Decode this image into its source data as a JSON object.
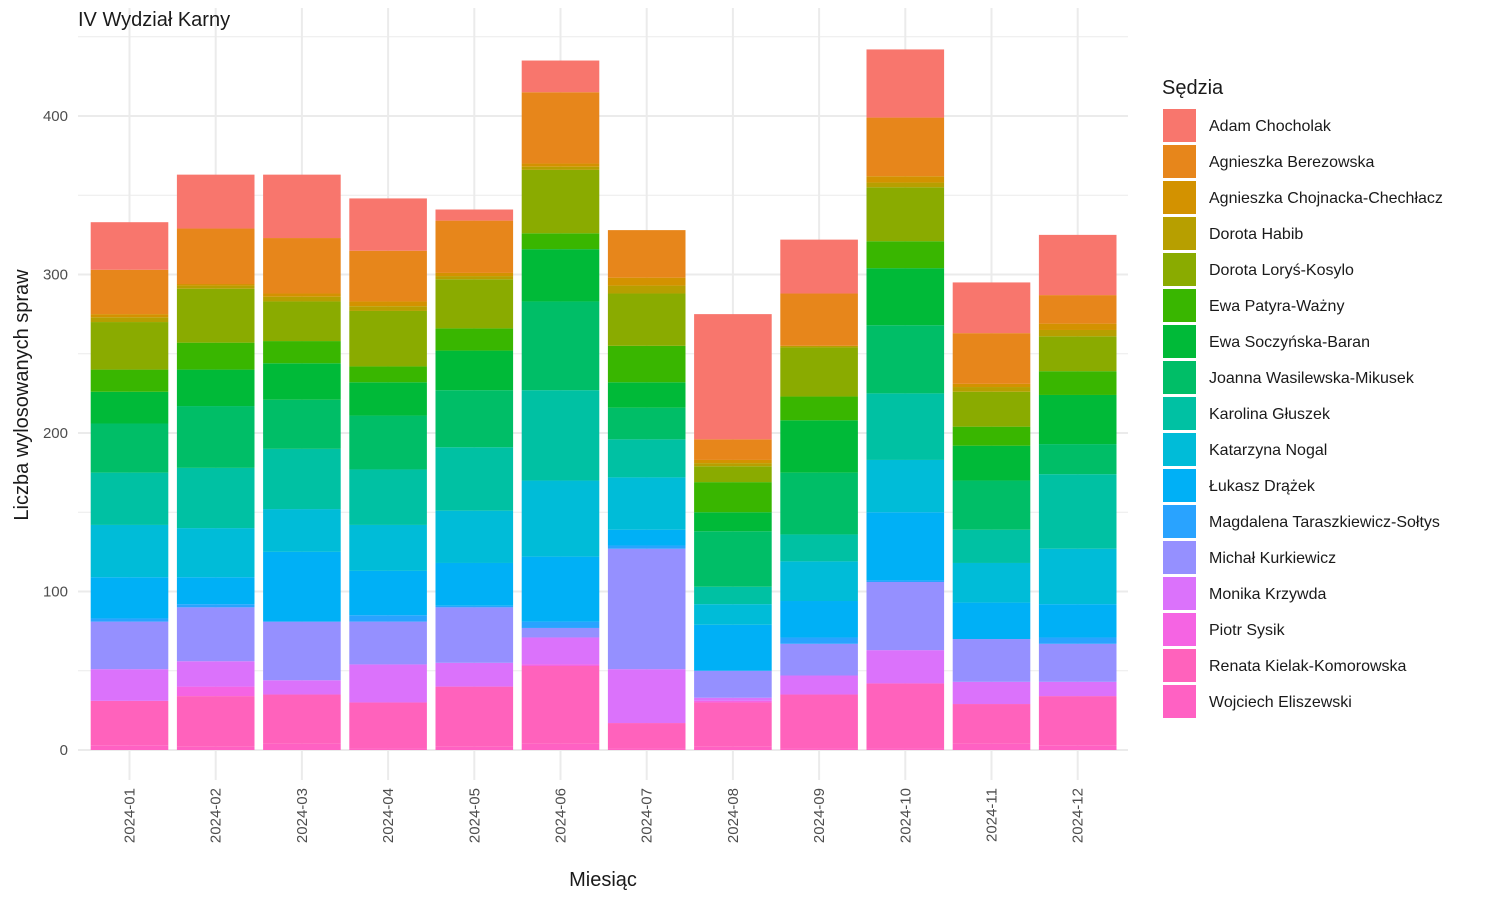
{
  "chart_data": {
    "type": "bar",
    "stacked": true,
    "title": "IV Wydział Karny",
    "xlabel": "Miesiąc",
    "ylabel": "Liczba wylosowanych spraw",
    "ylim": [
      -12,
      450
    ],
    "yticks": [
      0,
      100,
      200,
      300,
      400
    ],
    "grid": true,
    "legend": {
      "title": "Sędzia",
      "position": "right"
    },
    "categories": [
      "2024-01",
      "2024-02",
      "2024-03",
      "2024-04",
      "2024-05",
      "2024-06",
      "2024-07",
      "2024-08",
      "2024-09",
      "2024-10",
      "2024-11",
      "2024-12"
    ],
    "series": [
      {
        "name": "Wojciech Eliszewski",
        "color": "#FF61C3",
        "values": [
          3,
          2,
          4,
          1,
          2,
          4,
          1,
          2,
          1,
          1,
          4,
          3
        ]
      },
      {
        "name": "Renata Kielak-Komorowska",
        "color": "#FF62BC",
        "values": [
          28,
          32,
          31,
          29,
          38,
          49,
          16,
          28,
          34,
          41,
          25,
          31
        ]
      },
      {
        "name": "Piotr Sysik",
        "color": "#F564E3",
        "values": [
          0,
          6,
          0,
          0,
          0,
          1,
          0,
          1,
          0,
          0,
          0,
          0
        ]
      },
      {
        "name": "Monika Krzywda",
        "color": "#DB72FB",
        "values": [
          20,
          16,
          9,
          24,
          15,
          17,
          34,
          2,
          12,
          21,
          14,
          9
        ]
      },
      {
        "name": "Michał Kurkiewicz",
        "color": "#9590FF",
        "values": [
          30,
          34,
          37,
          27,
          35,
          6,
          76,
          17,
          20,
          43,
          27,
          24
        ]
      },
      {
        "name": "Magdalena Taraszkiewicz-Sołtys",
        "color": "#29A3FF",
        "values": [
          2,
          2,
          0,
          4,
          1,
          4,
          2,
          0,
          4,
          1,
          0,
          4
        ]
      },
      {
        "name": "Łukasz Drążek",
        "color": "#00B0F6",
        "values": [
          26,
          17,
          44,
          28,
          27,
          41,
          10,
          29,
          23,
          43,
          23,
          21
        ]
      },
      {
        "name": "Katarzyna Nogal",
        "color": "#00BCD8",
        "values": [
          33,
          31,
          27,
          29,
          33,
          48,
          33,
          13,
          25,
          33,
          25,
          35
        ]
      },
      {
        "name": "Karolina Głuszek",
        "color": "#00C1A3",
        "values": [
          33,
          38,
          38,
          35,
          40,
          57,
          24,
          11,
          17,
          42,
          21,
          47
        ]
      },
      {
        "name": "Joanna Wasilewska-Mikusek",
        "color": "#00BE67",
        "values": [
          31,
          39,
          31,
          34,
          36,
          56,
          20,
          35,
          39,
          43,
          31,
          19
        ]
      },
      {
        "name": "Ewa Soczyńska-Baran",
        "color": "#00BA38",
        "values": [
          20,
          23,
          23,
          21,
          25,
          33,
          16,
          12,
          33,
          36,
          22,
          31
        ]
      },
      {
        "name": "Ewa Patyra-Ważny",
        "color": "#39B600",
        "values": [
          14,
          17,
          14,
          10,
          14,
          10,
          23,
          19,
          15,
          17,
          12,
          15
        ]
      },
      {
        "name": "Dorota Loryś-Kosylo",
        "color": "#8AAB00",
        "values": [
          30,
          34,
          25,
          35,
          31,
          40,
          33,
          10,
          31,
          34,
          22,
          22
        ]
      },
      {
        "name": "Dorota Habib",
        "color": "#B79F00",
        "values": [
          3,
          2,
          3,
          3,
          2,
          2,
          5,
          2,
          1,
          3,
          3,
          4
        ]
      },
      {
        "name": "Agnieszka Chojnacka-Chechłacz",
        "color": "#D39200",
        "values": [
          2,
          1,
          2,
          3,
          2,
          2,
          5,
          2,
          0,
          4,
          2,
          4
        ]
      },
      {
        "name": "Agnieszka Berezowska",
        "color": "#E7861B",
        "values": [
          28,
          35,
          35,
          32,
          33,
          45,
          30,
          13,
          33,
          37,
          32,
          18
        ]
      },
      {
        "name": "Adam Chocholak",
        "color": "#F8766D",
        "values": [
          30,
          34,
          40,
          33,
          7,
          20,
          0,
          79,
          34,
          43,
          32,
          38
        ]
      }
    ]
  }
}
